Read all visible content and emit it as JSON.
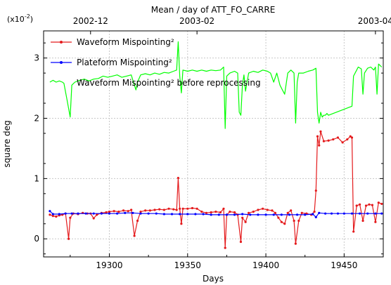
{
  "chart_data": {
    "type": "line",
    "title": "Mean / day of ATT_FO_CARRE",
    "xlabel": "Days",
    "ylabel": "square deg",
    "y_scale_label": "(x10",
    "y_scale_exp": "-2",
    "y_scale_close": ")",
    "xlim": [
      19258,
      19475
    ],
    "ylim": [
      -0.3,
      3.45
    ],
    "grid": true,
    "legend_position": "top-left",
    "x_ticks": [
      19300,
      19350,
      19400,
      19450
    ],
    "y_ticks": [
      0,
      1,
      2,
      3
    ],
    "top_ticks": [
      {
        "label": "2002-12",
        "x": 19288
      },
      {
        "label": "2003-02",
        "x": 19356
      },
      {
        "label": "2003-04",
        "x": 19470
      }
    ],
    "series": [
      {
        "name": "Waveform Mispointing²",
        "color": "#e41a1c",
        "marker": true,
        "points": [
          [
            19262,
            0.4
          ],
          [
            19264,
            0.38
          ],
          [
            19266,
            0.37
          ],
          [
            19268,
            0.39
          ],
          [
            19270,
            0.4
          ],
          [
            19272,
            0.42
          ],
          [
            19274,
            0.0
          ],
          [
            19275,
            0.35
          ],
          [
            19277,
            0.42
          ],
          [
            19280,
            0.41
          ],
          [
            19283,
            0.43
          ],
          [
            19286,
            0.42
          ],
          [
            19288,
            0.42
          ],
          [
            19290,
            0.34
          ],
          [
            19292,
            0.4
          ],
          [
            19295,
            0.43
          ],
          [
            19298,
            0.44
          ],
          [
            19300,
            0.45
          ],
          [
            19303,
            0.46
          ],
          [
            19306,
            0.45
          ],
          [
            19309,
            0.47
          ],
          [
            19312,
            0.46
          ],
          [
            19314,
            0.48
          ],
          [
            19316,
            0.05
          ],
          [
            19318,
            0.3
          ],
          [
            19320,
            0.45
          ],
          [
            19323,
            0.47
          ],
          [
            19326,
            0.47
          ],
          [
            19329,
            0.48
          ],
          [
            19332,
            0.49
          ],
          [
            19335,
            0.48
          ],
          [
            19338,
            0.5
          ],
          [
            19341,
            0.49
          ],
          [
            19343,
            0.48
          ],
          [
            19344,
            1.01
          ],
          [
            19345,
            0.5
          ],
          [
            19346,
            0.25
          ],
          [
            19347,
            0.5
          ],
          [
            19350,
            0.5
          ],
          [
            19353,
            0.51
          ],
          [
            19356,
            0.5
          ],
          [
            19359,
            0.45
          ],
          [
            19362,
            0.43
          ],
          [
            19365,
            0.44
          ],
          [
            19368,
            0.45
          ],
          [
            19371,
            0.44
          ],
          [
            19373,
            0.5
          ],
          [
            19374,
            -0.15
          ],
          [
            19375,
            0.4
          ],
          [
            19377,
            0.45
          ],
          [
            19380,
            0.44
          ],
          [
            19382,
            0.4
          ],
          [
            19384,
            -0.05
          ],
          [
            19385,
            0.35
          ],
          [
            19387,
            0.28
          ],
          [
            19389,
            0.43
          ],
          [
            19392,
            0.45
          ],
          [
            19395,
            0.48
          ],
          [
            19398,
            0.5
          ],
          [
            19401,
            0.48
          ],
          [
            19404,
            0.47
          ],
          [
            19406,
            0.43
          ],
          [
            19408,
            0.35
          ],
          [
            19410,
            0.28
          ],
          [
            19412,
            0.25
          ],
          [
            19414,
            0.43
          ],
          [
            19416,
            0.47
          ],
          [
            19418,
            0.3
          ],
          [
            19419,
            -0.08
          ],
          [
            19421,
            0.3
          ],
          [
            19423,
            0.43
          ],
          [
            19426,
            0.42
          ],
          [
            19429,
            0.4
          ],
          [
            19431,
            0.45
          ],
          [
            19432,
            0.8
          ],
          [
            19433,
            1.7
          ],
          [
            19434,
            1.55
          ],
          [
            19435,
            1.78
          ],
          [
            19437,
            1.62
          ],
          [
            19440,
            1.63
          ],
          [
            19443,
            1.65
          ],
          [
            19446,
            1.68
          ],
          [
            19449,
            1.6
          ],
          [
            19452,
            1.65
          ],
          [
            19454,
            1.7
          ],
          [
            19455,
            1.68
          ],
          [
            19456,
            0.12
          ],
          [
            19458,
            0.55
          ],
          [
            19460,
            0.57
          ],
          [
            19462,
            0.3
          ],
          [
            19464,
            0.55
          ],
          [
            19466,
            0.57
          ],
          [
            19468,
            0.56
          ],
          [
            19470,
            0.28
          ],
          [
            19472,
            0.6
          ],
          [
            19474,
            0.58
          ]
        ]
      },
      {
        "name": "Plateform Mispointing²",
        "color": "#0000ff",
        "marker": true,
        "points": [
          [
            19262,
            0.46
          ],
          [
            19264,
            0.41
          ],
          [
            19268,
            0.41
          ],
          [
            19272,
            0.42
          ],
          [
            19276,
            0.42
          ],
          [
            19280,
            0.42
          ],
          [
            19285,
            0.42
          ],
          [
            19290,
            0.42
          ],
          [
            19295,
            0.42
          ],
          [
            19300,
            0.42
          ],
          [
            19305,
            0.42
          ],
          [
            19310,
            0.43
          ],
          [
            19315,
            0.43
          ],
          [
            19320,
            0.42
          ],
          [
            19325,
            0.42
          ],
          [
            19330,
            0.42
          ],
          [
            19335,
            0.41
          ],
          [
            19340,
            0.41
          ],
          [
            19345,
            0.41
          ],
          [
            19350,
            0.41
          ],
          [
            19355,
            0.41
          ],
          [
            19360,
            0.41
          ],
          [
            19365,
            0.4
          ],
          [
            19370,
            0.4
          ],
          [
            19375,
            0.4
          ],
          [
            19380,
            0.4
          ],
          [
            19385,
            0.41
          ],
          [
            19390,
            0.4
          ],
          [
            19395,
            0.4
          ],
          [
            19400,
            0.4
          ],
          [
            19405,
            0.4
          ],
          [
            19410,
            0.4
          ],
          [
            19415,
            0.4
          ],
          [
            19420,
            0.4
          ],
          [
            19425,
            0.4
          ],
          [
            19430,
            0.41
          ],
          [
            19432,
            0.36
          ],
          [
            19434,
            0.43
          ],
          [
            19438,
            0.42
          ],
          [
            19442,
            0.42
          ],
          [
            19446,
            0.42
          ],
          [
            19450,
            0.42
          ],
          [
            19455,
            0.42
          ],
          [
            19460,
            0.42
          ],
          [
            19465,
            0.42
          ],
          [
            19470,
            0.42
          ],
          [
            19474,
            0.42
          ]
        ]
      },
      {
        "name": "Waveform Mispointing² before reprocessing",
        "color": "#00ff00",
        "marker": false,
        "points": [
          [
            19262,
            2.6
          ],
          [
            19264,
            2.63
          ],
          [
            19266,
            2.6
          ],
          [
            19268,
            2.62
          ],
          [
            19270,
            2.6
          ],
          [
            19271,
            2.58
          ],
          [
            19273,
            2.3
          ],
          [
            19275,
            2.02
          ],
          [
            19276,
            2.55
          ],
          [
            19278,
            2.6
          ],
          [
            19281,
            2.63
          ],
          [
            19284,
            2.65
          ],
          [
            19287,
            2.62
          ],
          [
            19290,
            2.65
          ],
          [
            19293,
            2.66
          ],
          [
            19296,
            2.7
          ],
          [
            19299,
            2.68
          ],
          [
            19302,
            2.7
          ],
          [
            19305,
            2.72
          ],
          [
            19308,
            2.68
          ],
          [
            19311,
            2.7
          ],
          [
            19314,
            2.72
          ],
          [
            19316,
            2.55
          ],
          [
            19317,
            2.47
          ],
          [
            19318,
            2.6
          ],
          [
            19320,
            2.72
          ],
          [
            19323,
            2.74
          ],
          [
            19326,
            2.72
          ],
          [
            19329,
            2.75
          ],
          [
            19332,
            2.73
          ],
          [
            19335,
            2.76
          ],
          [
            19338,
            2.75
          ],
          [
            19341,
            2.78
          ],
          [
            19343,
            2.8
          ],
          [
            19344,
            3.27
          ],
          [
            19345,
            2.7
          ],
          [
            19346,
            2.42
          ],
          [
            19347,
            2.8
          ],
          [
            19350,
            2.78
          ],
          [
            19353,
            2.8
          ],
          [
            19356,
            2.78
          ],
          [
            19359,
            2.8
          ],
          [
            19362,
            2.78
          ],
          [
            19365,
            2.8
          ],
          [
            19368,
            2.79
          ],
          [
            19371,
            2.8
          ],
          [
            19373,
            2.85
          ],
          [
            19374,
            1.83
          ],
          [
            19375,
            2.7
          ],
          [
            19377,
            2.75
          ],
          [
            19380,
            2.78
          ],
          [
            19382,
            2.75
          ],
          [
            19383,
            2.1
          ],
          [
            19384,
            2.05
          ],
          [
            19385,
            2.55
          ],
          [
            19386,
            2.72
          ],
          [
            19387,
            2.45
          ],
          [
            19389,
            2.75
          ],
          [
            19392,
            2.78
          ],
          [
            19395,
            2.76
          ],
          [
            19398,
            2.8
          ],
          [
            19401,
            2.78
          ],
          [
            19403,
            2.75
          ],
          [
            19405,
            2.6
          ],
          [
            19407,
            2.75
          ],
          [
            19409,
            2.55
          ],
          [
            19411,
            2.45
          ],
          [
            19412,
            2.4
          ],
          [
            19414,
            2.75
          ],
          [
            19416,
            2.8
          ],
          [
            19418,
            2.75
          ],
          [
            19419,
            1.92
          ],
          [
            19420,
            2.6
          ],
          [
            19421,
            2.75
          ],
          [
            19424,
            2.75
          ],
          [
            19427,
            2.78
          ],
          [
            19430,
            2.8
          ],
          [
            19432,
            2.83
          ],
          [
            19433,
            2.1
          ],
          [
            19434,
            1.92
          ],
          [
            19435,
            2.1
          ],
          [
            19436,
            2.02
          ],
          [
            19437,
            2.05
          ],
          [
            19438,
            2.05
          ],
          [
            19439,
            2.08
          ],
          [
            19440,
            2.05
          ],
          [
            19455,
            2.2
          ],
          [
            19456,
            2.7
          ],
          [
            19458,
            2.8
          ],
          [
            19459,
            2.85
          ],
          [
            19461,
            2.82
          ],
          [
            19462,
            2.4
          ],
          [
            19463,
            2.75
          ],
          [
            19465,
            2.83
          ],
          [
            19467,
            2.85
          ],
          [
            19469,
            2.8
          ],
          [
            19470,
            2.85
          ],
          [
            19471,
            2.4
          ],
          [
            19472,
            2.9
          ],
          [
            19474,
            2.85
          ]
        ]
      }
    ]
  }
}
